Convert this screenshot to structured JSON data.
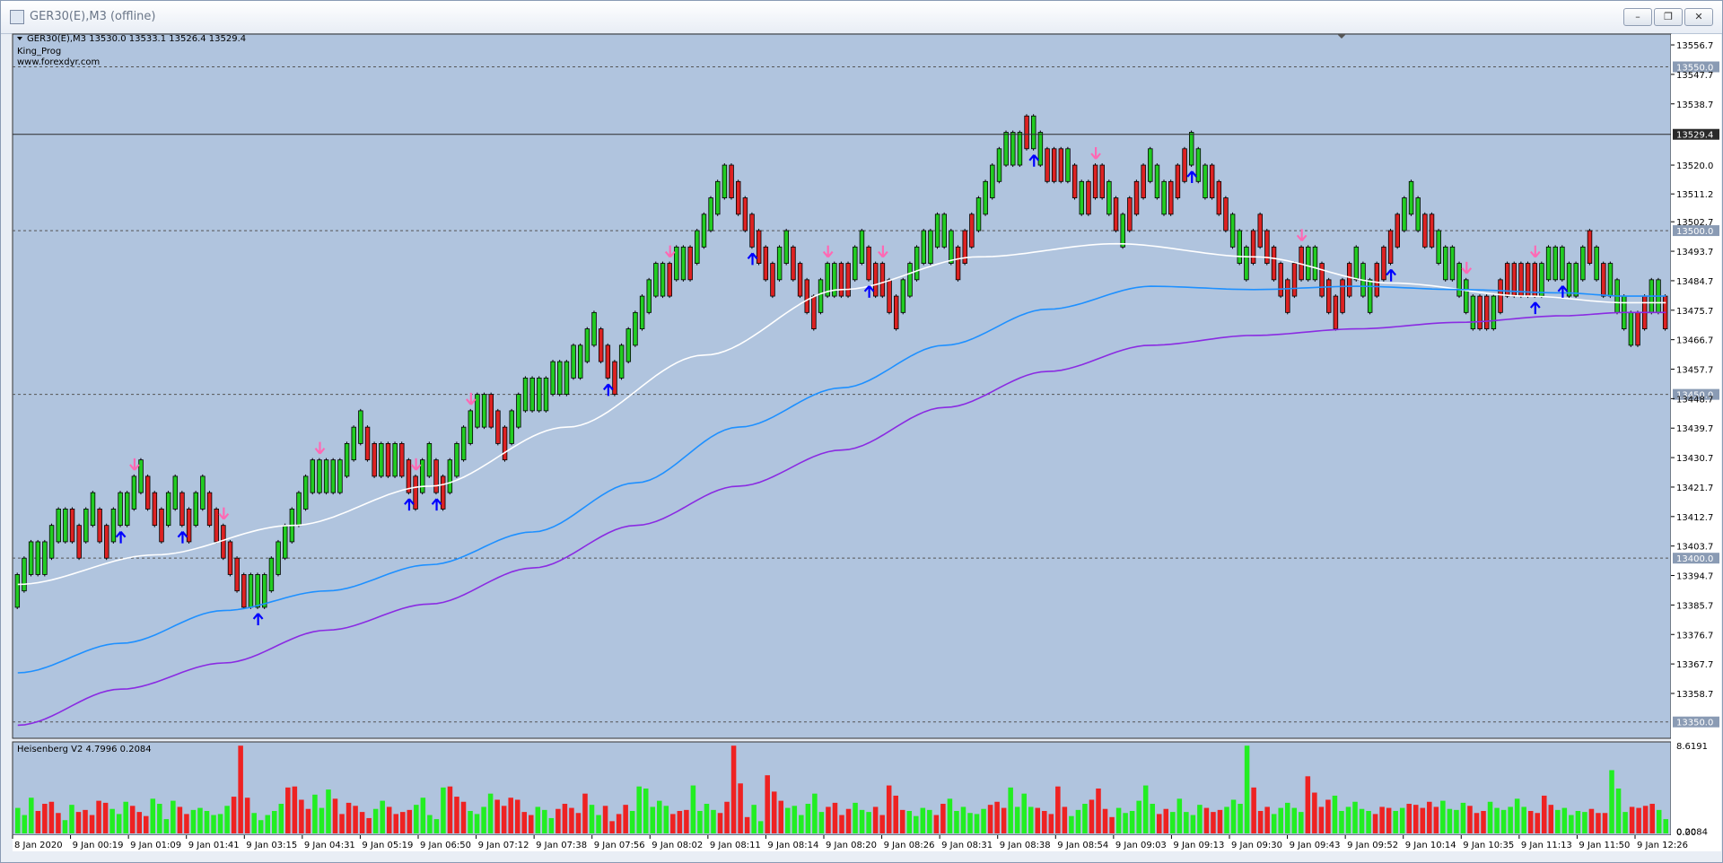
{
  "window": {
    "title": "GER30(E),M3 (offline)",
    "minimize_label": "–",
    "restore_label": "❐",
    "close_label": "✕"
  },
  "header": {
    "symbol_info": "GER30(E),M3  13530.0 13533.1 13526.4 13529.4",
    "indicator_name": "King_Prog",
    "website": "www.forexdyr.com"
  },
  "colors": {
    "background": "#b0c4de",
    "bull": "#22cc22",
    "bear": "#dd2222",
    "white_ma": "#ffffff",
    "blue_ma": "#1e90ff",
    "purple_ma": "#8a2be2",
    "down_arrow": "#ff69b4",
    "up_arrow": "#0000ff",
    "price_box": "#b0c4de"
  },
  "chart_data": [
    {
      "type": "candlestick",
      "title": "GER30(E),M3",
      "ylim": [
        13345,
        13560
      ],
      "y_ticks": [
        13556.7,
        13547.7,
        13538.7,
        13520.0,
        13511.2,
        13502.7,
        13493.7,
        13484.7,
        13475.7,
        13466.7,
        13457.7,
        13448.7,
        13439.7,
        13430.7,
        13421.7,
        13412.7,
        13403.7,
        13394.7,
        13385.7,
        13376.7,
        13367.7,
        13358.7
      ],
      "level_labels": [
        13550.0,
        13500.0,
        13450.0,
        13400.0,
        13350.0
      ],
      "current_price": 13529.4,
      "x_labels": [
        "8 Jan 2020",
        "9 Jan 00:19",
        "9 Jan 01:09",
        "9 Jan 01:41",
        "9 Jan 03:15",
        "9 Jan 04:31",
        "9 Jan 05:19",
        "9 Jan 06:50",
        "9 Jan 07:12",
        "9 Jan 07:38",
        "9 Jan 07:56",
        "9 Jan 08:02",
        "9 Jan 08:11",
        "9 Jan 08:14",
        "9 Jan 08:20",
        "9 Jan 08:26",
        "9 Jan 08:31",
        "9 Jan 08:38",
        "9 Jan 08:54",
        "9 Jan 09:03",
        "9 Jan 09:13",
        "9 Jan 09:30",
        "9 Jan 09:43",
        "9 Jan 09:52",
        "9 Jan 10:14",
        "9 Jan 10:35",
        "9 Jan 11:13",
        "9 Jan 11:50",
        "9 Jan 12:26"
      ],
      "brick_size": 10,
      "brick_lows": [
        13385,
        13390,
        13395,
        13395,
        13395,
        13400,
        13405,
        13405,
        13405,
        13400,
        13405,
        13410,
        13405,
        13400,
        13405,
        13410,
        13410,
        13415,
        13420,
        13415,
        13410,
        13405,
        13410,
        13415,
        13410,
        13405,
        13410,
        13415,
        13410,
        13405,
        13400,
        13395,
        13390,
        13385,
        13385,
        13385,
        13385,
        13390,
        13395,
        13400,
        13405,
        13410,
        13415,
        13420,
        13420,
        13420,
        13420,
        13420,
        13425,
        13430,
        13435,
        13430,
        13425,
        13425,
        13425,
        13425,
        13425,
        13420,
        13415,
        13420,
        13425,
        13420,
        13415,
        13420,
        13425,
        13430,
        13435,
        13440,
        13440,
        13440,
        13435,
        13430,
        13435,
        13440,
        13445,
        13445,
        13445,
        13445,
        13450,
        13450,
        13450,
        13455,
        13455,
        13460,
        13465,
        13460,
        13455,
        13450,
        13455,
        13460,
        13465,
        13470,
        13475,
        13480,
        13480,
        13480,
        13485,
        13485,
        13485,
        13490,
        13495,
        13500,
        13505,
        13510,
        13510,
        13505,
        13500,
        13495,
        13490,
        13485,
        13480,
        13485,
        13490,
        13485,
        13480,
        13475,
        13470,
        13475,
        13480,
        13480,
        13480,
        13480,
        13485,
        13490,
        13485,
        13480,
        13480,
        13475,
        13470,
        13475,
        13480,
        13485,
        13490,
        13490,
        13495,
        13495,
        13490,
        13485,
        13490,
        13495,
        13500,
        13505,
        13510,
        13515,
        13520,
        13520,
        13520,
        13525,
        13525,
        13520,
        13515,
        13515,
        13515,
        13515,
        13510,
        13505,
        13505,
        13510,
        13510,
        13505,
        13500,
        13495,
        13500,
        13505,
        13510,
        13515,
        13510,
        13505,
        13505,
        13510,
        13515,
        13520,
        13515,
        13510,
        13510,
        13505,
        13500,
        13495,
        13490,
        13485,
        13490,
        13495,
        13490,
        13485,
        13480,
        13475,
        13480,
        13485,
        13485,
        13485,
        13480,
        13475,
        13470,
        13475,
        13480,
        13485,
        13480,
        13475,
        13480,
        13485,
        13490,
        13495,
        13500,
        13505,
        13500,
        13495,
        13495,
        13490,
        13485,
        13485,
        13480,
        13475,
        13470,
        13470,
        13470,
        13470,
        13475,
        13480,
        13480,
        13480,
        13480,
        13480,
        13480,
        13485,
        13485,
        13485,
        13480,
        13480,
        13485,
        13490,
        13485,
        13480,
        13480,
        13475,
        13470,
        13465,
        13465,
        13470,
        13475,
        13475,
        13470
      ],
      "brick_dir": [
        1,
        1,
        1,
        1,
        1,
        1,
        1,
        1,
        -1,
        -1,
        1,
        1,
        -1,
        -1,
        1,
        1,
        1,
        1,
        1,
        -1,
        -1,
        -1,
        1,
        1,
        -1,
        -1,
        1,
        1,
        -1,
        -1,
        -1,
        -1,
        -1,
        -1,
        1,
        1,
        1,
        1,
        1,
        1,
        1,
        1,
        1,
        1,
        1,
        1,
        1,
        1,
        1,
        1,
        1,
        -1,
        -1,
        1,
        -1,
        1,
        -1,
        -1,
        -1,
        1,
        1,
        -1,
        -1,
        1,
        1,
        1,
        1,
        1,
        1,
        -1,
        -1,
        -1,
        1,
        1,
        1,
        1,
        1,
        1,
        1,
        1,
        1,
        1,
        1,
        1,
        1,
        -1,
        -1,
        -1,
        1,
        1,
        1,
        1,
        1,
        1,
        1,
        -1,
        1,
        1,
        -1,
        1,
        1,
        1,
        1,
        1,
        -1,
        -1,
        -1,
        -1,
        -1,
        -1,
        -1,
        1,
        1,
        -1,
        -1,
        -1,
        -1,
        1,
        1,
        1,
        -1,
        -1,
        1,
        1,
        -1,
        -1,
        -1,
        -1,
        -1,
        1,
        1,
        1,
        1,
        1,
        1,
        1,
        1,
        -1,
        -1,
        -1,
        1,
        1,
        1,
        1,
        1,
        1,
        1,
        -1,
        1,
        1,
        -1,
        -1,
        -1,
        1,
        -1,
        1,
        -1,
        -1,
        -1,
        1,
        -1,
        1,
        -1,
        -1,
        -1,
        1,
        1,
        1,
        -1,
        -1,
        -1,
        1,
        1,
        1,
        -1,
        -1,
        -1,
        1,
        1,
        1,
        -1,
        -1,
        -1,
        -1,
        -1,
        -1,
        -1,
        -1,
        1,
        1,
        -1,
        -1,
        -1,
        -1,
        -1,
        1,
        1,
        1,
        -1,
        -1,
        -1,
        -1,
        1,
        1,
        1,
        -1,
        -1,
        1,
        1,
        1,
        1,
        1,
        1,
        -1,
        -1,
        1,
        -1,
        -1,
        -1,
        -1,
        -1,
        -1,
        1,
        1,
        1,
        1,
        1,
        1,
        1,
        -1,
        1,
        -1,
        1,
        1,
        1,
        1,
        -1,
        -1,
        1,
        1,
        -1,
        -1,
        -1,
        -1,
        -1,
        1,
        1,
        1,
        1,
        -1
      ],
      "series": [
        {
          "name": "white",
          "x": [
            0,
            20,
            40,
            60,
            80,
            100,
            120,
            140,
            160,
            180,
            200,
            220,
            234
          ],
          "values": [
            13392,
            13401,
            13410,
            13422,
            13440,
            13462,
            13482,
            13492,
            13496,
            13492,
            13484,
            13480,
            13478
          ]
        },
        {
          "name": "blue",
          "x": [
            0,
            15,
            30,
            45,
            60,
            75,
            90,
            105,
            120,
            135,
            150,
            165,
            180,
            195,
            210,
            225,
            234
          ],
          "values": [
            13365,
            13374,
            13384,
            13390,
            13398,
            13408,
            13423,
            13440,
            13452,
            13465,
            13476,
            13483,
            13482,
            13483,
            13482,
            13481,
            13480
          ]
        },
        {
          "name": "purple",
          "x": [
            0,
            15,
            30,
            45,
            60,
            75,
            90,
            105,
            120,
            135,
            150,
            165,
            180,
            195,
            210,
            225,
            234
          ],
          "values": [
            13349,
            13360,
            13368,
            13378,
            13386,
            13397,
            13410,
            13422,
            13433,
            13446,
            13457,
            13465,
            13468,
            13470,
            13472,
            13474,
            13475
          ]
        }
      ],
      "up_arrows": [
        15,
        24,
        35,
        57,
        61,
        86,
        107,
        124,
        148,
        171,
        200,
        221,
        225
      ],
      "down_arrows": [
        17,
        30,
        44,
        58,
        66,
        95,
        118,
        126,
        157,
        187,
        211,
        221
      ]
    },
    {
      "type": "bar",
      "title": "Heisenberg V2 4.7996 0.2084",
      "ylim": [
        0,
        8.6191
      ],
      "y_ticks": [
        8.6191,
        0.2084,
        0.0
      ],
      "bars": [
        2.5,
        1.8,
        3.5,
        2.2,
        2.9,
        3.1,
        2.0,
        1.3,
        2.8,
        2.1,
        2.3,
        1.8,
        3.2,
        3.0,
        2.4,
        1.9,
        3.1,
        2.7,
        2.1,
        1.7,
        3.4,
        2.9,
        1.4,
        3.2,
        2.6,
        1.9,
        2.3,
        2.5,
        2.2,
        1.8,
        1.9,
        2.7,
        3.6,
        8.6,
        3.5,
        2.0,
        1.3,
        1.8,
        2.2,
        2.9,
        4.5,
        4.6,
        3.3,
        2.4,
        3.8,
        2.5,
        4.3,
        3.4,
        1.9,
        3.0,
        2.7,
        2.1,
        1.5,
        2.4,
        3.2,
        2.6,
        1.9,
        2.1,
        2.3,
        2.8,
        3.5,
        1.8,
        1.4,
        4.5,
        4.6,
        3.6,
        3.1,
        2.2,
        1.9,
        2.6,
        3.9,
        3.3,
        2.7,
        3.5,
        3.3,
        2.1,
        1.8,
        2.6,
        2.3,
        1.5,
        2.4,
        2.9,
        2.5,
        2.0,
        3.9,
        2.8,
        1.8,
        2.7,
        1.2,
        1.9,
        2.8,
        2.2,
        4.6,
        4.4,
        2.6,
        3.2,
        2.7,
        1.9,
        2.2,
        2.3,
        4.7,
        2.2,
        2.9,
        2.3,
        2.0,
        3.1,
        8.6,
        4.9,
        1.6,
        2.8,
        1.2,
        5.7,
        4.1,
        3.2,
        2.5,
        2.7,
        1.8,
        2.9,
        3.9,
        2.1,
        2.6,
        3.0,
        1.8,
        2.4,
        3.0,
        2.3,
        2.1,
        2.6,
        1.8,
        4.7,
        3.7,
        2.3,
        2.2,
        1.7,
        2.5,
        2.3,
        1.8,
        2.9,
        3.4,
        2.2,
        2.6,
        2.0,
        1.9,
        2.4,
        2.8,
        3.1,
        2.5,
        4.5,
        2.6,
        3.9,
        2.6,
        2.5,
        2.2,
        1.9,
        4.6,
        2.6,
        1.7,
        2.3,
        2.9,
        3.3,
        4.4,
        2.4,
        1.6,
        2.5,
        2.0,
        2.2,
        3.2,
        4.7,
        2.9,
        1.9,
        2.4,
        2.1,
        3.4,
        2.1,
        1.8,
        2.8,
        2.5,
        2.1,
        2.3,
        2.6,
        3.3,
        2.9,
        8.6,
        4.5,
        2.2,
        2.6,
        1.9,
        2.5,
        3.0,
        2.5,
        2.1,
        5.6,
        4.0,
        2.6,
        3.3,
        3.7,
        2.2,
        2.6,
        3.1,
        2.4,
        2.2,
        1.9,
        2.6,
        2.5,
        2.2,
        2.5,
        2.9,
        2.8,
        2.5,
        3.1,
        2.6,
        3.2,
        2.4,
        2.3,
        3.0,
        2.7,
        2.0,
        2.2,
        3.1,
        2.5,
        2.3,
        2.6,
        3.4,
        2.6,
        2.2,
        2.0,
        3.7,
        2.8,
        2.3,
        2.5,
        1.8,
        2.2,
        2.1,
        2.4,
        2.0,
        2.0,
        6.2,
        4.4,
        2.1,
        2.6,
        2.5,
        2.7,
        2.9,
        2.3,
        1.4
      ],
      "colors_pattern": "alternating runs of green (#22ee22) and red (#ee2222)"
    }
  ]
}
